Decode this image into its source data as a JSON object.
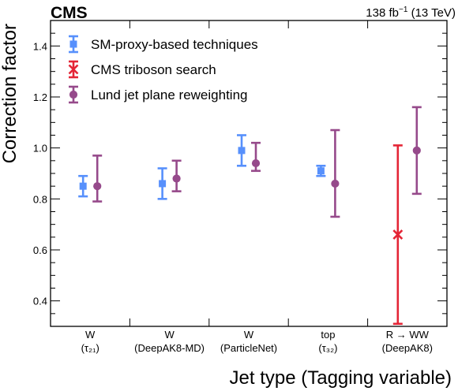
{
  "header": {
    "experiment": "CMS",
    "lumi_value": "138 fb",
    "lumi_exp": "−1",
    "lumi_energy": " (13 TeV)"
  },
  "chart_data": {
    "type": "scatter",
    "title": "",
    "xlabel": "Jet type (Tagging variable)",
    "ylabel": "Correction factor",
    "ylim": [
      0.3,
      1.5
    ],
    "yticks": [
      0.4,
      0.6,
      0.8,
      1.0,
      1.2,
      1.4
    ],
    "ytick_labels": [
      "0.4",
      "0.6",
      "0.8",
      "1.0",
      "1.2",
      "1.4"
    ],
    "grid": false,
    "legend_position": "top-left",
    "categories": [
      {
        "line1": "W",
        "line2": "(τ₂₁)"
      },
      {
        "line1": "W",
        "line2": "(DeepAK8-MD)"
      },
      {
        "line1": "W",
        "line2": "(ParticleNet)"
      },
      {
        "line1": "top",
        "line2": "(τ₃₂)"
      },
      {
        "line1": "R  →  WW",
        "line2": "(DeepAK8)"
      }
    ],
    "series": [
      {
        "name": "SM-proxy-based techniques",
        "color": "#5790fc",
        "marker": "square",
        "points": [
          {
            "category": 0,
            "y": 0.85,
            "low": 0.81,
            "high": 0.89
          },
          {
            "category": 1,
            "y": 0.86,
            "low": 0.8,
            "high": 0.92
          },
          {
            "category": 2,
            "y": 0.99,
            "low": 0.93,
            "high": 1.05
          },
          {
            "category": 3,
            "y": 0.91,
            "low": 0.89,
            "high": 0.93
          }
        ]
      },
      {
        "name": "CMS triboson search",
        "color": "#e42536",
        "marker": "x",
        "points": [
          {
            "category": 4,
            "y": 0.66,
            "low": 0.31,
            "high": 1.01
          }
        ]
      },
      {
        "name": "Lund jet plane reweighting",
        "color": "#964a8b",
        "marker": "circle",
        "points": [
          {
            "category": 0,
            "y": 0.85,
            "low": 0.79,
            "high": 0.97
          },
          {
            "category": 1,
            "y": 0.88,
            "low": 0.83,
            "high": 0.95
          },
          {
            "category": 2,
            "y": 0.94,
            "low": 0.91,
            "high": 1.02
          },
          {
            "category": 3,
            "y": 0.86,
            "low": 0.73,
            "high": 1.07
          },
          {
            "category": 4,
            "y": 0.99,
            "low": 0.82,
            "high": 1.16
          }
        ]
      }
    ]
  }
}
